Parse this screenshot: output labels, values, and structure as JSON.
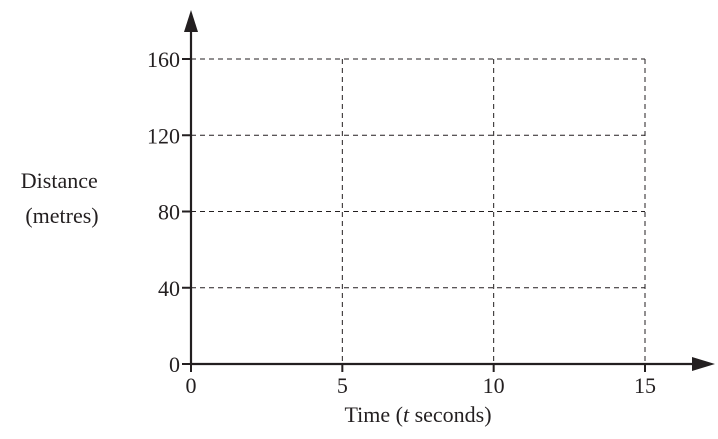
{
  "chart_data": {
    "type": "line",
    "title": "",
    "xlabel_prefix": "Time (",
    "xlabel_var": "t",
    "xlabel_suffix": " seconds)",
    "ylabel_lines": [
      "Distance",
      "(metres)"
    ],
    "xlim": [
      0,
      15
    ],
    "ylim": [
      0,
      160
    ],
    "x_ticks": [
      0,
      5,
      10,
      15
    ],
    "y_ticks": [
      0,
      40,
      80,
      120,
      160
    ],
    "x_tick_labels": [
      "0",
      "5",
      "10",
      "15"
    ],
    "y_tick_labels": [
      "0",
      "40",
      "80",
      "120",
      "160"
    ],
    "grid": true,
    "grid_style": "dashed",
    "series": [],
    "axis_color": "#231f20"
  }
}
